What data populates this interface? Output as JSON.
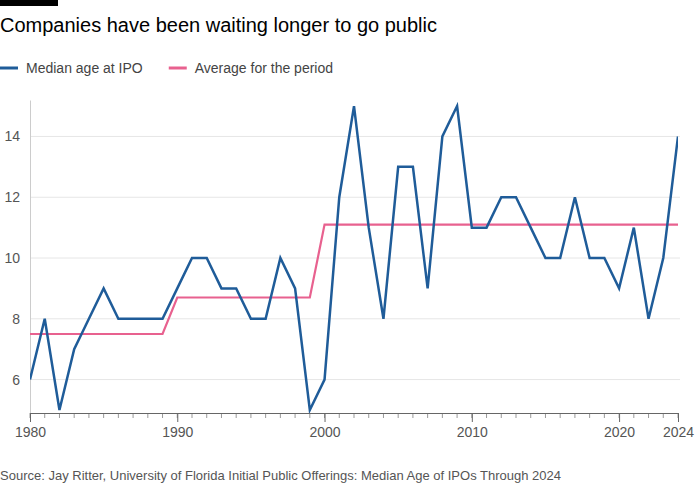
{
  "chart_data": {
    "type": "line",
    "title": "Companies have been waiting longer to go public",
    "source": "Source: Jay Ritter, University of Florida Initial Public Offerings: Median Age of IPOs Through 2024",
    "x": [
      1980,
      1981,
      1982,
      1983,
      1984,
      1985,
      1986,
      1987,
      1988,
      1989,
      1990,
      1991,
      1992,
      1993,
      1994,
      1995,
      1996,
      1997,
      1998,
      1999,
      2000,
      2001,
      2002,
      2003,
      2004,
      2005,
      2006,
      2007,
      2008,
      2009,
      2010,
      2011,
      2012,
      2013,
      2014,
      2015,
      2016,
      2017,
      2018,
      2019,
      2020,
      2021,
      2022,
      2023,
      2024
    ],
    "series": [
      {
        "name": "Median age at IPO",
        "color": "#1f5c99",
        "values": [
          6,
          8,
          5,
          7,
          8,
          9,
          8,
          8,
          8,
          8,
          9,
          10,
          10,
          9,
          9,
          8,
          8,
          10,
          9,
          5,
          6,
          12,
          15,
          11,
          8,
          13,
          13,
          9,
          14,
          15,
          11,
          11,
          12,
          12,
          11,
          10,
          10,
          12,
          10,
          10,
          9,
          11,
          8,
          10,
          14
        ]
      },
      {
        "name": "Average for the period",
        "color": "#e8618f",
        "values": [
          7.5,
          7.5,
          7.5,
          7.5,
          7.5,
          7.5,
          7.5,
          7.5,
          7.5,
          7.5,
          8.7,
          8.7,
          8.7,
          8.7,
          8.7,
          8.7,
          8.7,
          8.7,
          8.7,
          8.7,
          11.1,
          11.1,
          11.1,
          11.1,
          11.1,
          11.1,
          11.1,
          11.1,
          11.1,
          11.1,
          11.1,
          11.1,
          11.1,
          11.1,
          11.1,
          11.1,
          11.1,
          11.1,
          11.1,
          11.1,
          11.1,
          11.1,
          11.1,
          11.1,
          11.1
        ]
      }
    ],
    "xlim": [
      1980,
      2024
    ],
    "xticks": [
      1980,
      1990,
      2000,
      2010,
      2020,
      2024
    ],
    "ylim": [
      4.9,
      15.2
    ],
    "yticks": [
      6,
      8,
      10,
      12,
      14
    ],
    "grid": true,
    "legend": "top-left"
  }
}
